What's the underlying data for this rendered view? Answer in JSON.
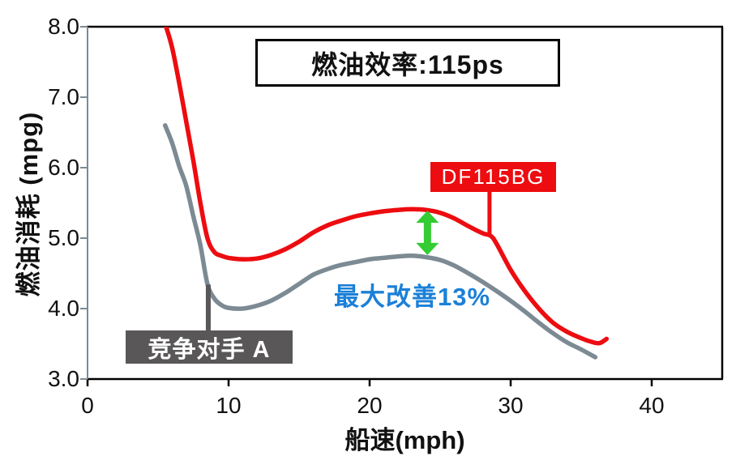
{
  "chart_data": {
    "type": "line",
    "title": "燃油效率:115ps",
    "xlabel": "船速(mph)",
    "ylabel": "燃油消耗 (mpg)",
    "xlim": [
      0,
      45
    ],
    "ylim": [
      3.0,
      8.0
    ],
    "grid": false,
    "legend_position": "inline-callout-labels",
    "x_ticks": [
      {
        "label": "0",
        "value": 0
      },
      {
        "label": "10",
        "value": 10
      },
      {
        "label": "20",
        "value": 20
      },
      {
        "label": "30",
        "value": 30
      },
      {
        "label": "40",
        "value": 40
      }
    ],
    "y_ticks": [
      {
        "label": "8.0",
        "value": 8.0
      },
      {
        "label": "7.0",
        "value": 7.0
      },
      {
        "label": "6.0",
        "value": 6.0
      },
      {
        "label": "5.0",
        "value": 5.0
      },
      {
        "label": "4.0",
        "value": 4.0
      },
      {
        "label": "3.0",
        "value": 3.0
      }
    ],
    "axis_colors": {
      "left_axis": "#7c8a93",
      "frame": "#000000"
    },
    "series": [
      {
        "name": "DF115BG",
        "color": "#ed0c10",
        "x": [
          5.57,
          6,
          6.5,
          7,
          7.5,
          8,
          8.5,
          9,
          9.5,
          10,
          11,
          12,
          13,
          14,
          15,
          16,
          17,
          18,
          19,
          20,
          21,
          22,
          23,
          24,
          25,
          26,
          27,
          28,
          28.6,
          29,
          30,
          31,
          32,
          33,
          34,
          35,
          35.7,
          36.3,
          36.8
        ],
        "y": [
          8.0,
          7.7,
          7.2,
          6.65,
          6.1,
          5.5,
          5.0,
          4.8,
          4.75,
          4.72,
          4.7,
          4.71,
          4.76,
          4.84,
          4.95,
          5.08,
          5.18,
          5.25,
          5.31,
          5.35,
          5.38,
          5.4,
          5.41,
          5.4,
          5.36,
          5.28,
          5.17,
          5.07,
          5.03,
          4.92,
          4.55,
          4.25,
          4.0,
          3.8,
          3.67,
          3.58,
          3.53,
          3.51,
          3.57
        ]
      },
      {
        "name": "竞争对手 A",
        "color": "#7c8a93",
        "x": [
          5.5,
          6,
          6.5,
          7,
          7.5,
          8,
          8.5,
          9,
          9.5,
          10,
          11,
          12,
          13,
          14,
          15,
          16,
          17,
          18,
          19,
          20,
          21,
          22,
          23,
          24,
          25,
          26,
          27,
          28,
          29,
          30,
          31,
          32,
          33,
          34,
          35,
          36
        ],
        "y": [
          6.6,
          6.35,
          6.02,
          5.74,
          5.31,
          4.9,
          4.35,
          4.14,
          4.05,
          4.01,
          4.0,
          4.04,
          4.11,
          4.22,
          4.35,
          4.48,
          4.56,
          4.62,
          4.66,
          4.7,
          4.72,
          4.74,
          4.75,
          4.73,
          4.69,
          4.61,
          4.5,
          4.38,
          4.25,
          4.11,
          3.96,
          3.8,
          3.65,
          3.52,
          3.42,
          3.31
        ]
      }
    ],
    "annotations": {
      "improvement": {
        "text": "最大改善13%",
        "text_color": "#1b80d8",
        "arrow_color": "#33cc33",
        "arrow_x_mph": 24.1,
        "arrow_top_mpg": 5.39,
        "arrow_bottom_mpg": 4.76
      },
      "df_label": {
        "text": "DF115BG",
        "bg_color": "#ed0c10",
        "text_color": "#ffffff",
        "connector_x_mph": 28.5,
        "connector_to_mpg": 5.03
      },
      "competitor_label": {
        "text": "竞争对手 A",
        "bg_color": "#595757",
        "text_color": "#ffffff",
        "connector_x_mph": 8.56,
        "connector_from_mpg": 4.34
      }
    }
  }
}
